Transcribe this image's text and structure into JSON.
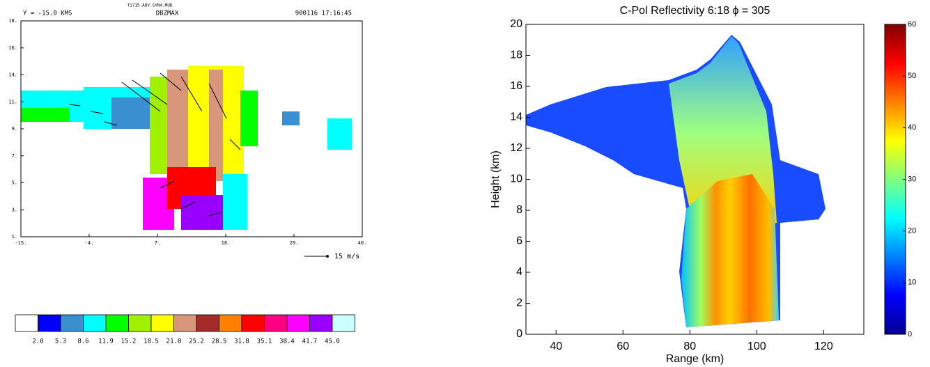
{
  "chart_data": [
    {
      "type": "vector-field",
      "file": "T1715.ADV.SYN4.MUD",
      "header_left": "Y =  -15.0 KMS",
      "header_center": "DBZMAX",
      "header_right": "900116   17:16:45",
      "xlim": [
        -15,
        40
      ],
      "ylim": [
        1,
        18
      ],
      "xticks": [
        {
          "value": -15,
          "label": "-15."
        },
        {
          "value": -4,
          "label": "-4."
        },
        {
          "value": 7,
          "label": "7."
        },
        {
          "value": 18,
          "label": "18."
        },
        {
          "value": 29,
          "label": "29."
        },
        {
          "value": 40,
          "label": "40."
        }
      ],
      "yticks": [
        {
          "value": 1,
          "label": "1."
        },
        {
          "value": 3.125,
          "label": "3."
        },
        {
          "value": 5.25,
          "label": "5."
        },
        {
          "value": 7.375,
          "label": "7."
        },
        {
          "value": 9.5,
          "label": "9."
        },
        {
          "value": 11.625,
          "label": "11."
        },
        {
          "value": 13.75,
          "label": "14."
        },
        {
          "value": 15.875,
          "label": "16."
        },
        {
          "value": 18,
          "label": "18."
        }
      ],
      "vector_key": "15 m/s",
      "colorbar": {
        "colors": [
          "#ffffff",
          "#0000ff",
          "#3a8fd0",
          "#00ffff",
          "#00ff00",
          "#a0f000",
          "#ffff00",
          "#d8967a",
          "#a52a2a",
          "#ff8000",
          "#ff0000",
          "#ff0080",
          "#ff00ff",
          "#9900ff",
          "#ccffff"
        ],
        "ticks": [
          {
            "value": 2,
            "label": "2.0"
          },
          {
            "value": 5.3,
            "label": "5.3"
          },
          {
            "value": 8.6,
            "label": "8.6"
          },
          {
            "value": 11.9,
            "label": "11.9"
          },
          {
            "value": 15.2,
            "label": "15.2"
          },
          {
            "value": 18.5,
            "label": "18.5"
          },
          {
            "value": 21.8,
            "label": "21.8"
          },
          {
            "value": 25.2,
            "label": "25.2"
          },
          {
            "value": 28.5,
            "label": "28.5"
          },
          {
            "value": 31.8,
            "label": "31.8"
          },
          {
            "value": 35.1,
            "label": "35.1"
          },
          {
            "value": 38.4,
            "label": "38.4"
          },
          {
            "value": 41.7,
            "label": "41.7"
          },
          {
            "value": 45,
            "label": "45.0"
          }
        ]
      }
    },
    {
      "type": "heatmap",
      "title": "C-Pol Reflectivity   6:18   ϕ = 305",
      "x_label": "Range (km)",
      "y_label": "Height (km)",
      "xlim": [
        31,
        132
      ],
      "ylim": [
        0,
        20
      ],
      "xticks": [
        40,
        60,
        80,
        100,
        120
      ],
      "yticks": [
        0,
        2,
        4,
        6,
        8,
        10,
        12,
        14,
        16,
        18,
        20
      ],
      "colormap": "jet",
      "colorbar": {
        "lim": [
          0,
          60
        ],
        "ticks": [
          0,
          10,
          20,
          30,
          40,
          50,
          60
        ]
      }
    }
  ]
}
